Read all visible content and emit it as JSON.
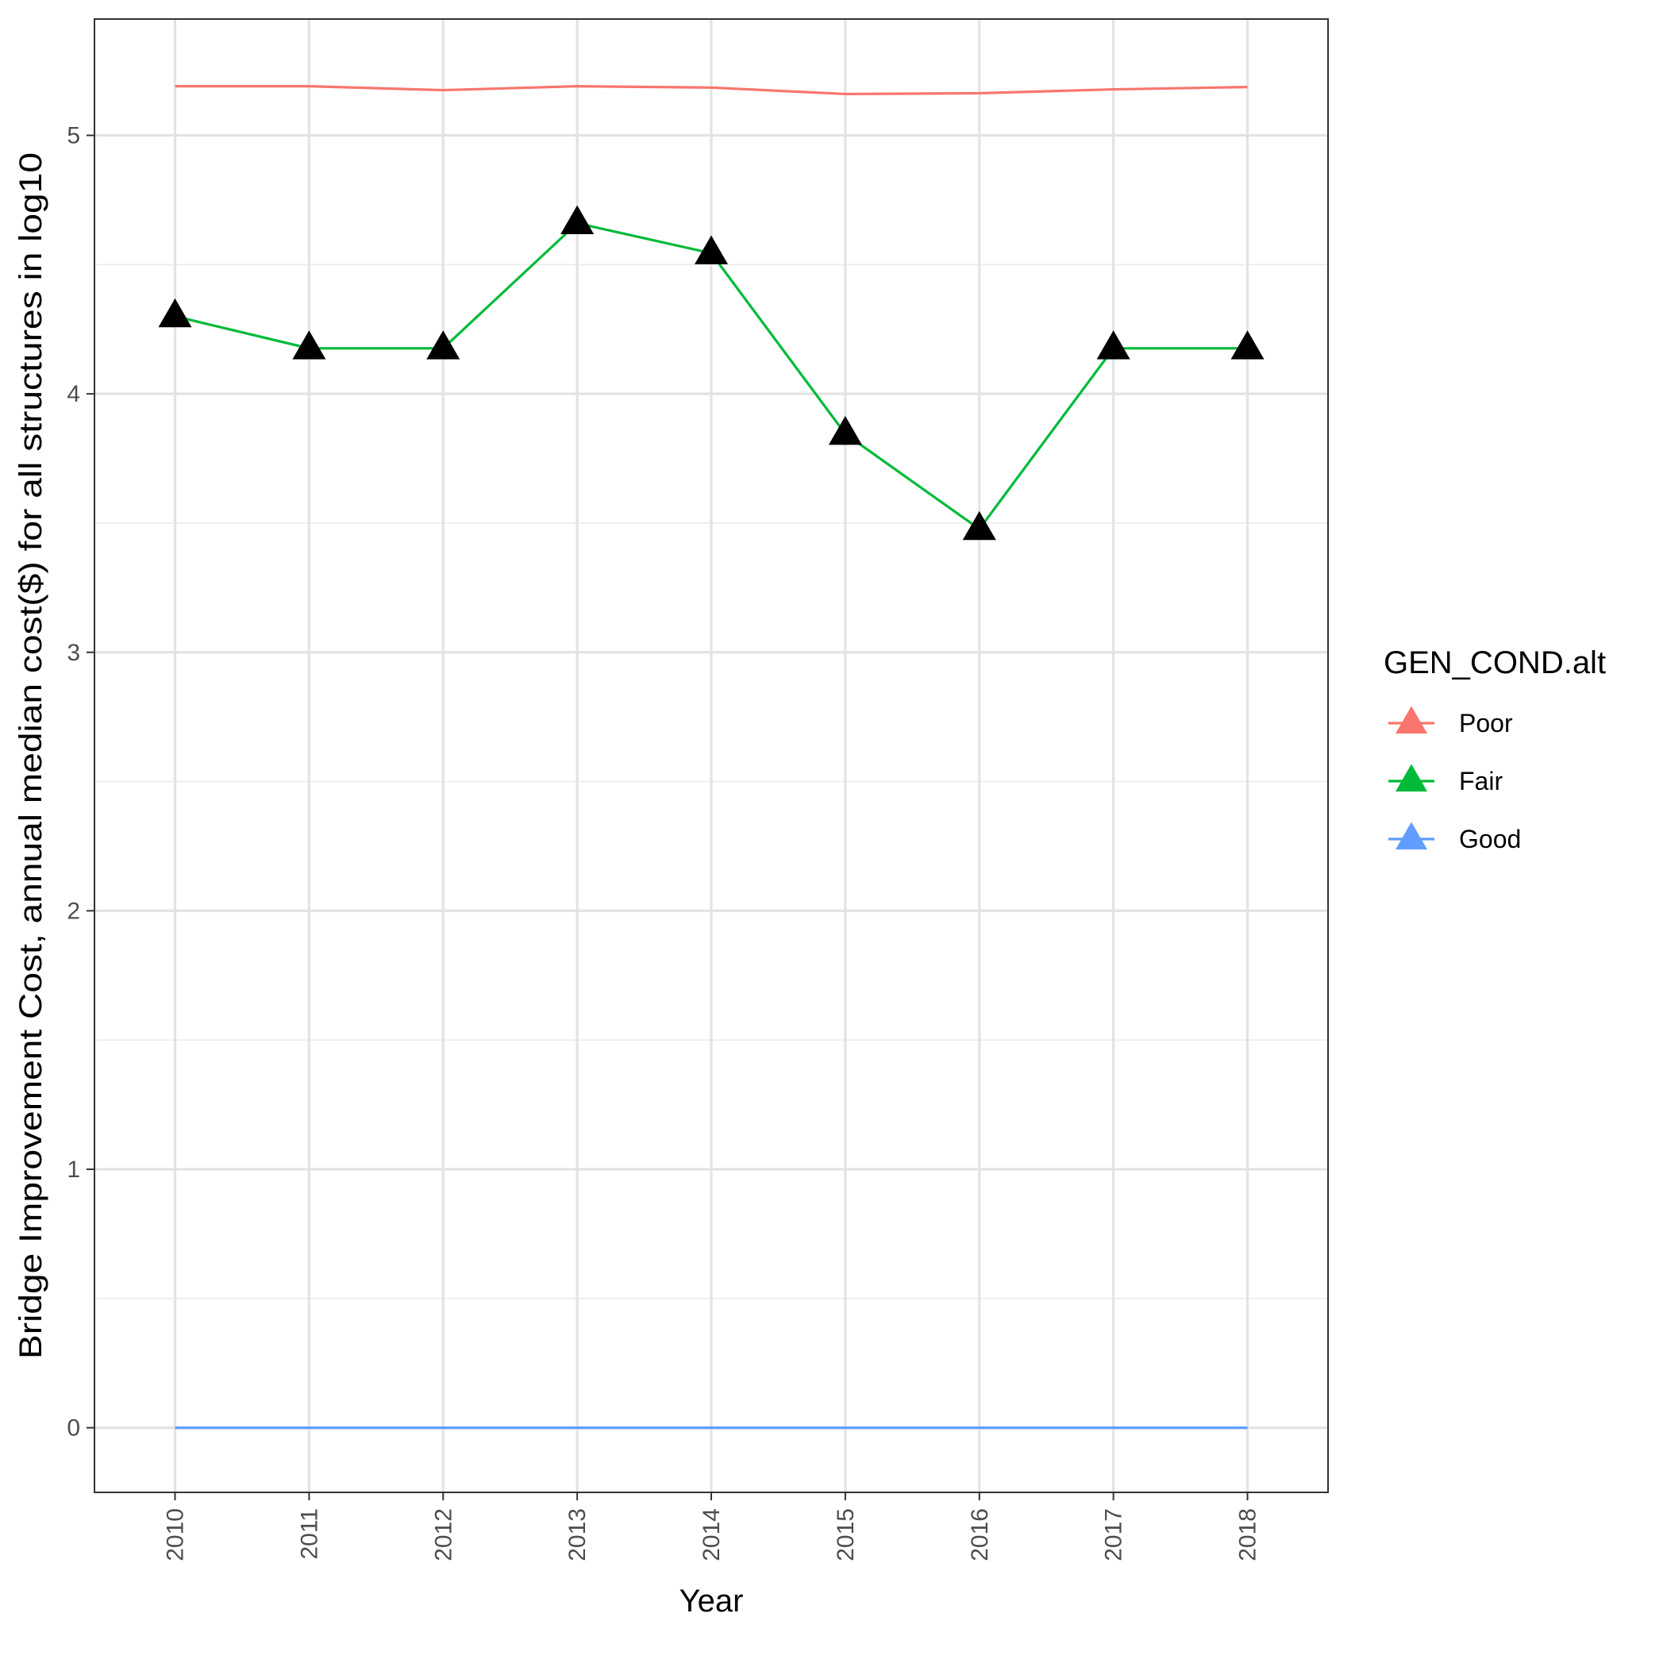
{
  "chart_data": {
    "type": "line",
    "title": "",
    "xlabel": "Year",
    "ylabel": "Bridge Improvement Cost, annual median cost($) for all structures in log10",
    "x": [
      "2010",
      "2011",
      "2012",
      "2013",
      "2014",
      "2015",
      "2016",
      "2017",
      "2018"
    ],
    "y_ticks": [
      "0",
      "1",
      "2",
      "3",
      "4",
      "5"
    ],
    "ylim": [
      -0.25,
      5.45
    ],
    "grid": true,
    "legend": {
      "title": "GEN_COND.alt",
      "placement": "right"
    },
    "series": [
      {
        "name": "Poor",
        "color": "#F8766D",
        "values": [
          5.19,
          5.19,
          5.175,
          5.19,
          5.185,
          5.16,
          5.163,
          5.178,
          5.187
        ],
        "markers": false
      },
      {
        "name": "Fair",
        "color": "#00BA38",
        "values": [
          4.3,
          4.176,
          4.176,
          4.66,
          4.544,
          3.845,
          3.477,
          4.176,
          4.176
        ],
        "markers": true,
        "marker_color": "#000000"
      },
      {
        "name": "Good",
        "color": "#619CFF",
        "values": [
          0,
          0,
          0,
          0,
          0,
          0,
          0,
          0,
          0
        ],
        "markers": false
      }
    ]
  }
}
